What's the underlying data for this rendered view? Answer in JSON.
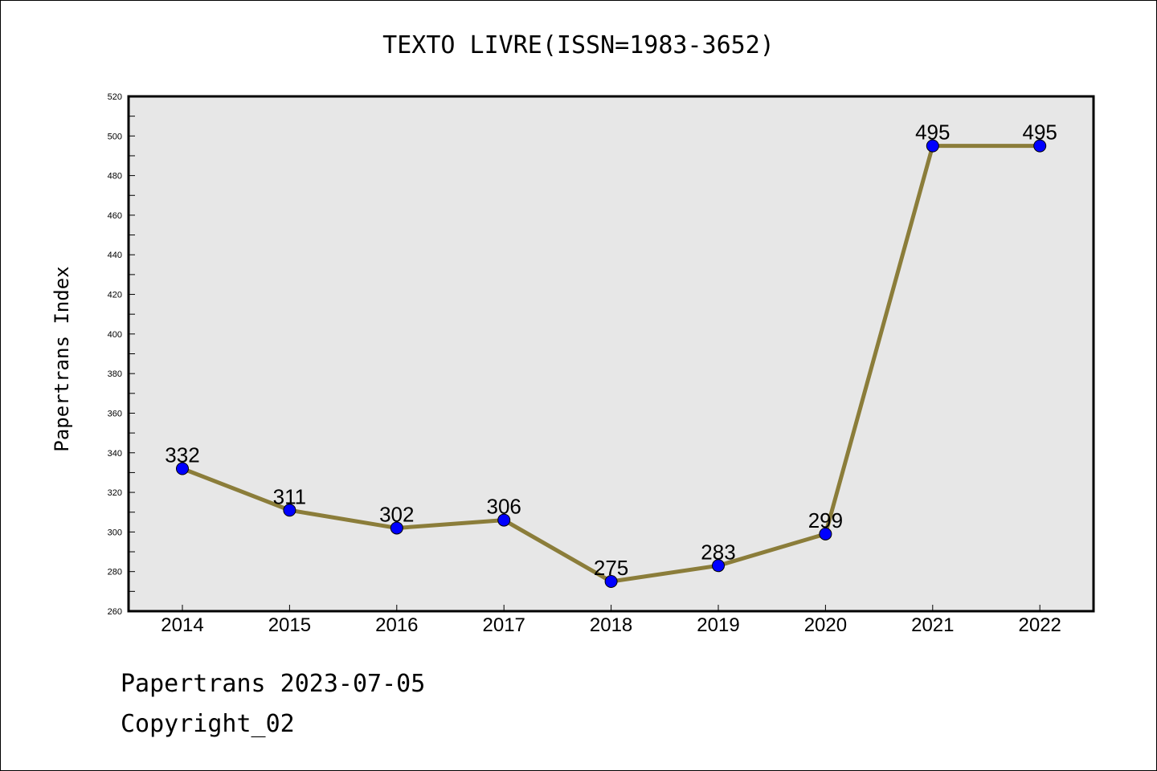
{
  "chart_data": {
    "type": "line",
    "title": "TEXTO LIVRE(ISSN=1983-3652)",
    "ylabel": "Papertrans Index",
    "xlabel": "",
    "categories": [
      "2014",
      "2015",
      "2016",
      "2017",
      "2018",
      "2019",
      "2020",
      "2021",
      "2022"
    ],
    "values": [
      332,
      311,
      302,
      306,
      275,
      283,
      299,
      495,
      495
    ],
    "ylim": [
      260,
      520
    ],
    "yticks": [
      260,
      280,
      300,
      320,
      340,
      360,
      380,
      400,
      420,
      440,
      460,
      480,
      500,
      520
    ],
    "grid": false,
    "line_color": "#8b7d3a",
    "marker_color": "#0000ff",
    "plot_background": "#e7e7e7"
  },
  "footer": {
    "line1": "Papertrans 2023-07-05",
    "line2": "Copyright_02"
  }
}
